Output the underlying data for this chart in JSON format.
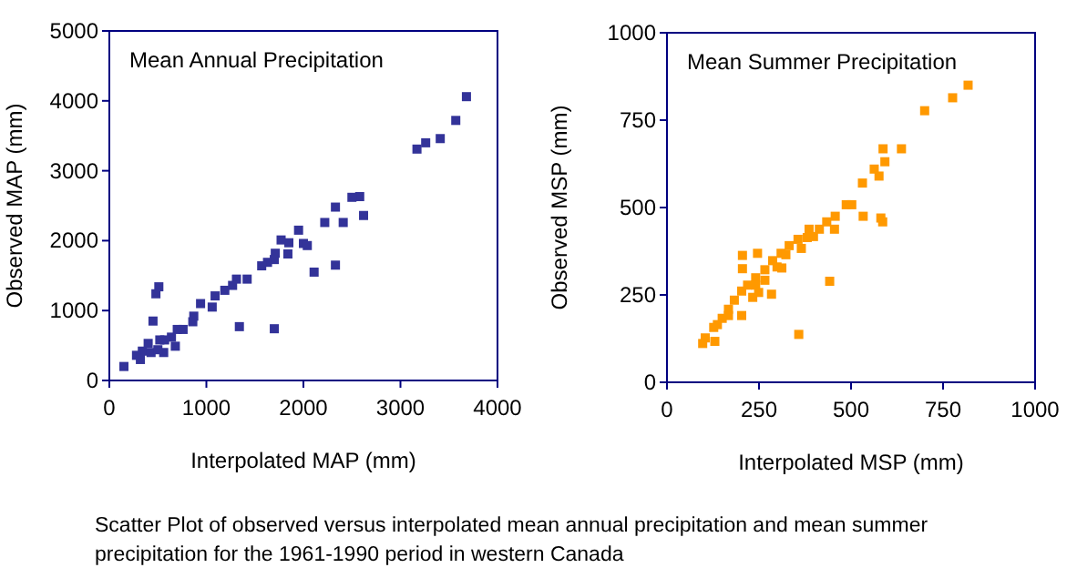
{
  "chart_data": [
    {
      "type": "scatter",
      "title": "Mean Annual Precipitation",
      "xlabel": "Interpolated MAP (mm)",
      "ylabel": "Observed MAP (mm)",
      "xlim": [
        0,
        4000
      ],
      "ylim": [
        0,
        5000
      ],
      "xticks": [
        0,
        1000,
        2000,
        3000,
        4000
      ],
      "yticks": [
        0,
        1000,
        2000,
        3000,
        4000,
        5000
      ],
      "marker": "square",
      "grid": false,
      "annotations": [
        "Scatter Plot of observed versus interpolated mean annual precipitation and mean summer precipitation for the 1961-1990 period in western Canada"
      ],
      "series": [
        {
          "color": "#333399",
          "x": [
            150,
            3680,
            3570,
            3410,
            3260,
            3170,
            2580,
            2500,
            2330,
            2620,
            2220,
            2410,
            1950,
            1770,
            1850,
            2000,
            2040,
            1840,
            1710,
            1700,
            1630,
            1570,
            2110,
            2330,
            1420,
            1310,
            1270,
            1190,
            1090,
            1060,
            940,
            870,
            860,
            700,
            760,
            640,
            510,
            480,
            450,
            1340,
            1700,
            520,
            570,
            400,
            340,
            280,
            320,
            430,
            560,
            680,
            500
          ],
          "values": [
            200,
            4060,
            3720,
            3460,
            3400,
            3310,
            2630,
            2620,
            2480,
            2360,
            2260,
            2260,
            2150,
            2010,
            1970,
            1960,
            1930,
            1810,
            1820,
            1730,
            1690,
            1640,
            1550,
            1650,
            1450,
            1450,
            1360,
            1290,
            1210,
            1050,
            1100,
            920,
            840,
            730,
            730,
            620,
            1340,
            1240,
            850,
            770,
            740,
            580,
            580,
            530,
            420,
            360,
            300,
            400,
            400,
            490,
            440
          ]
        }
      ]
    },
    {
      "type": "scatter",
      "title": "Mean Summer Precipitation",
      "xlabel": "Interpolated MSP (mm)",
      "ylabel": "Observed MSP (mm)",
      "xlim": [
        0,
        1000
      ],
      "ylim": [
        0,
        1000
      ],
      "xticks": [
        0,
        250,
        500,
        750,
        1000
      ],
      "yticks": [
        0,
        250,
        500,
        750,
        1000
      ],
      "marker": "square",
      "grid": false,
      "series": [
        {
          "color": "#ff9900",
          "x": [
            818,
            776,
            700,
            637,
            587,
            592,
            563,
            576,
            531,
            533,
            581,
            586,
            487,
            502,
            457,
            455,
            442,
            358,
            434,
            414,
            386,
            381,
            356,
            332,
            310,
            287,
            266,
            241,
            219,
            203,
            183,
            167,
            150,
            137,
            127,
            104,
            97,
            130,
            205,
            205,
            246,
            203,
            284,
            233,
            241,
            266,
            299,
            323,
            365,
            398,
            167,
            249,
            312
          ],
          "values": [
            850,
            814,
            777,
            668,
            668,
            631,
            610,
            590,
            570,
            475,
            470,
            459,
            508,
            508,
            475,
            438,
            289,
            137,
            459,
            438,
            438,
            414,
            409,
            391,
            369,
            348,
            322,
            299,
            278,
            261,
            235,
            209,
            183,
            165,
            157,
            127,
            111,
            117,
            363,
            325,
            369,
            191,
            252,
            243,
            278,
            292,
            330,
            365,
            383,
            417,
            191,
            257,
            327
          ]
        }
      ]
    }
  ]
}
